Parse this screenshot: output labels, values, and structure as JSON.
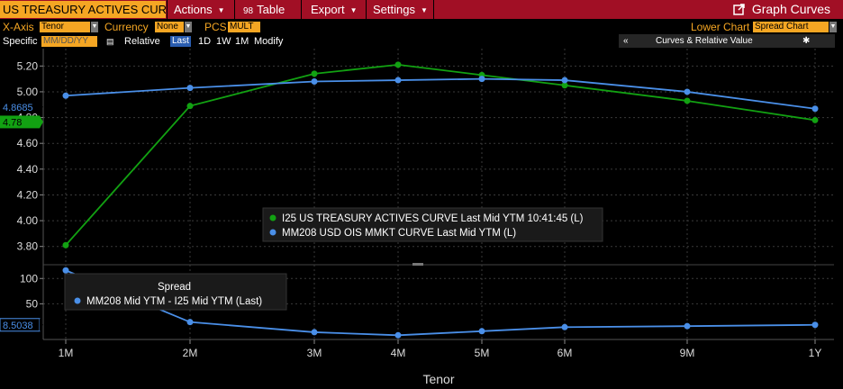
{
  "toolbar": {
    "title_field": "US TREASURY ACTIVES CURV",
    "actions_label": "Actions",
    "table_label": "Table",
    "table_icon": "98",
    "export_label": "Export",
    "settings_label": "Settings",
    "graph_curves_label": "Graph Curves"
  },
  "options": {
    "xaxis_label": "X-Axis",
    "xaxis_value": "Tenor",
    "currency_label": "Currency",
    "currency_value": "None",
    "pcs_label": "PCS",
    "pcs_value": "MULT",
    "lower_chart_label": "Lower Chart",
    "lower_chart_value": "Spread Chart"
  },
  "controls": {
    "specific_label": "Specific",
    "date_placeholder": "MM/DD/YY",
    "relative_label": "Relative",
    "last_label": "Last",
    "periods": [
      "1D",
      "1W",
      "1M"
    ],
    "modify_label": "Modify",
    "collapse_label": "«",
    "panel_title": "Curves & Relative Value"
  },
  "colors": {
    "treasury": "#12a112",
    "ois": "#4a8fe8",
    "spread": "#4a8fe8",
    "accent": "#f5a623",
    "toolbar": "#a10f25"
  },
  "chart_data": [
    {
      "type": "line",
      "x": [
        "1M",
        "2M",
        "3M",
        "4M",
        "5M",
        "6M",
        "9M",
        "1Y"
      ],
      "xlabel": "Tenor",
      "ylim": [
        3.7,
        5.3
      ],
      "yticks": [
        "3.80",
        "4.00",
        "4.20",
        "4.40",
        "4.60",
        "4.80",
        "5.00",
        "5.20"
      ],
      "series": [
        {
          "name": "I25 US TREASURY ACTIVES CURVE Last Mid YTM 10:41:45 (L)",
          "values": [
            3.81,
            4.89,
            5.14,
            5.21,
            5.13,
            5.05,
            4.93,
            4.78
          ],
          "last_label": "4.78"
        },
        {
          "name": "MM208 USD OIS MMKT CURVE Last Mid YTM (L)",
          "values": [
            4.97,
            5.03,
            5.08,
            5.09,
            5.1,
            5.09,
            5.0,
            4.8685
          ],
          "last_label": "4.8685"
        }
      ],
      "grid": true,
      "legend": "center"
    },
    {
      "type": "line",
      "x": [
        "1M",
        "2M",
        "3M",
        "4M",
        "5M",
        "6M",
        "9M",
        "1Y"
      ],
      "xlabel": "Tenor",
      "ylim": [
        -15,
        120
      ],
      "yticks": [
        "50",
        "100"
      ],
      "legend_title": "Spread",
      "series": [
        {
          "name": "MM208 Mid YTM - I25 Mid YTM (Last)",
          "values": [
            116,
            14,
            -6,
            -12,
            -4,
            4,
            6,
            8.5038
          ],
          "last_label": "8.5038"
        }
      ],
      "grid": true,
      "legend": "top-left"
    }
  ]
}
